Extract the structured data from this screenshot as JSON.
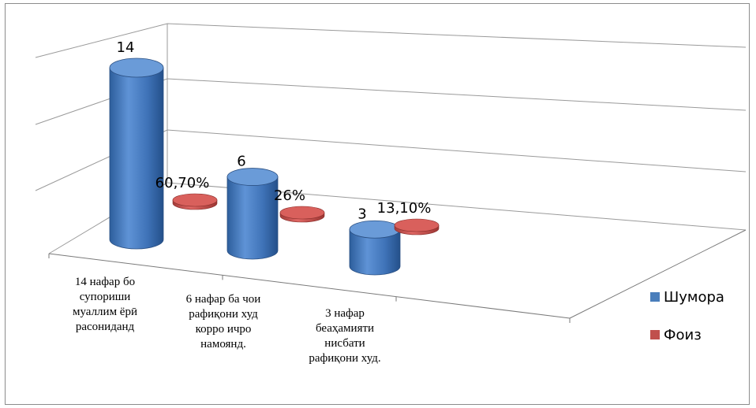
{
  "chart_data": {
    "type": "bar",
    "categories": [
      [
        "14 нафар бо",
        "супориши",
        "муаллим ёрӣ",
        "расониданд"
      ],
      [
        "6 нафар ба чои",
        "рафиқони худ",
        "корро ичро",
        "намоянд."
      ],
      [
        "3 нафар",
        "беаҳамияти",
        "нисбати",
        "рафиқони худ."
      ]
    ],
    "series": [
      {
        "name": "Шумора",
        "values": [
          14,
          6,
          3
        ],
        "labels": [
          "14",
          "6",
          "3"
        ],
        "color": "#4a7ebb"
      },
      {
        "name": "Фоиз",
        "values": [
          0.607,
          0.26,
          0.131
        ],
        "labels": [
          "60,70%",
          "26%",
          "13,10%"
        ],
        "color": "#c0504d"
      }
    ],
    "ylim": [
      0,
      16
    ],
    "grid": true,
    "three_d": true,
    "legend_position": "right"
  }
}
